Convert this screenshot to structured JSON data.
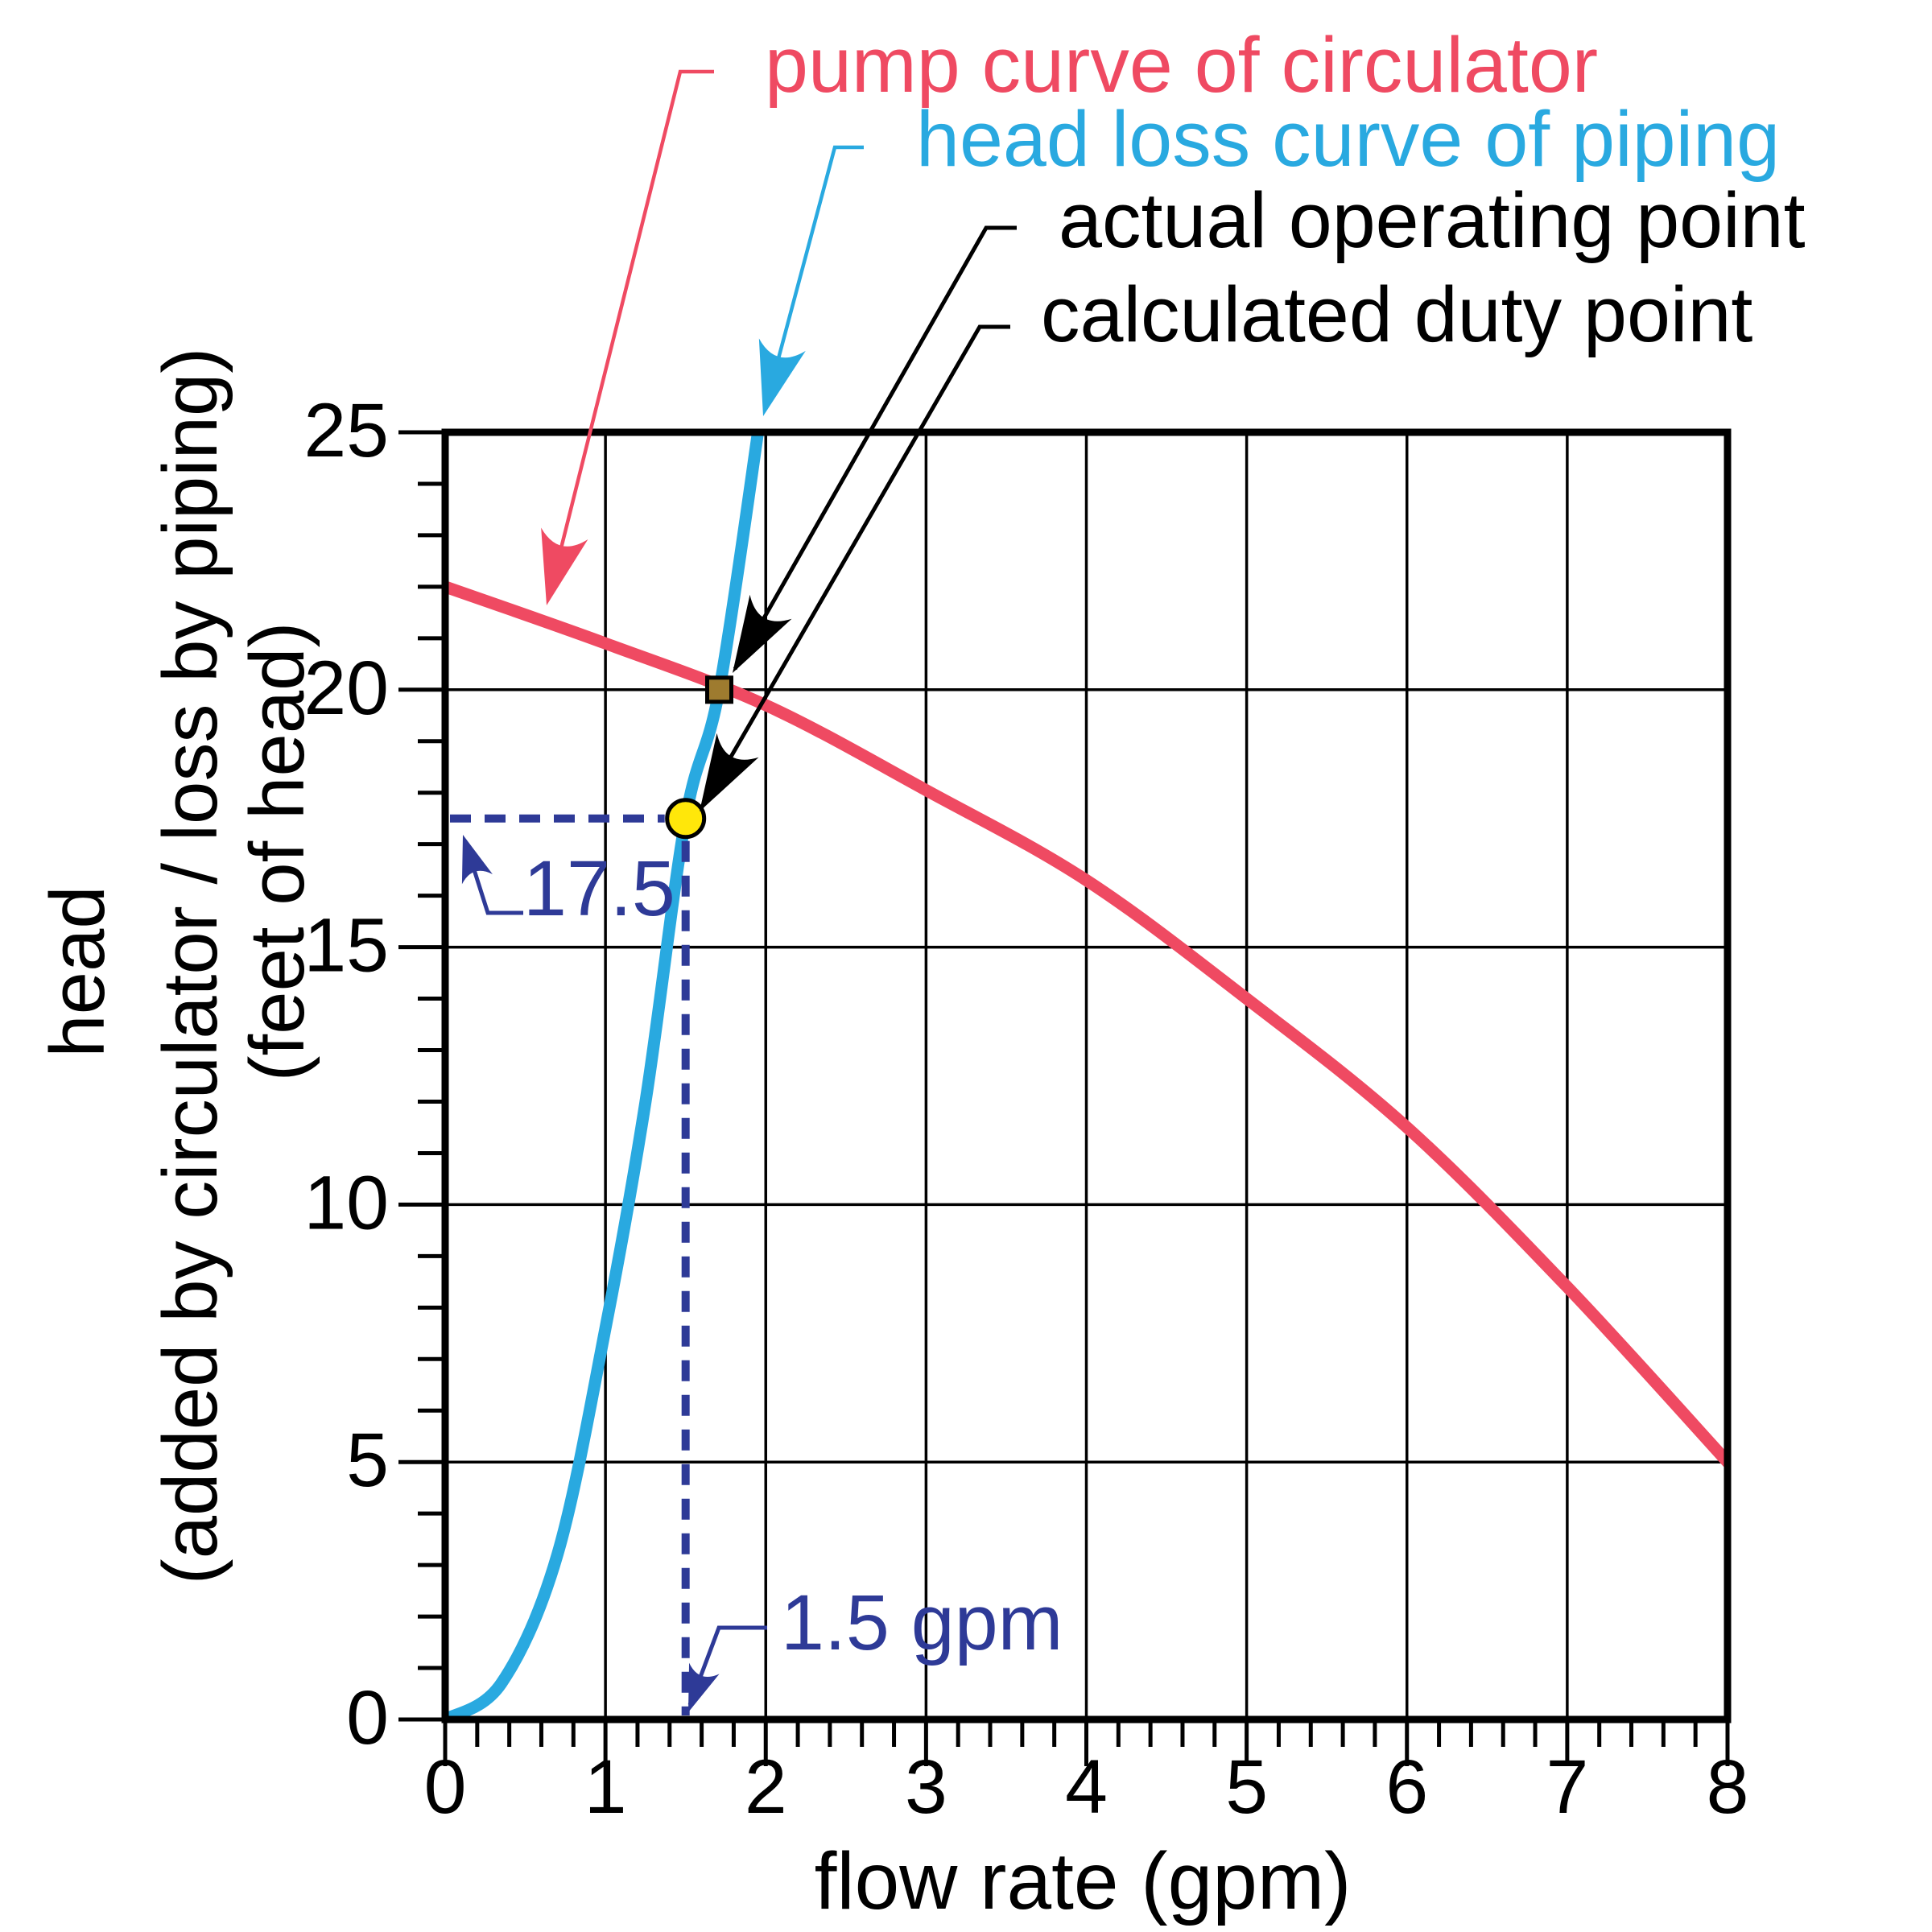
{
  "colors": {
    "red": "#EF4A62",
    "blue": "#29A9E0",
    "navy": "#2E3A97",
    "yellow": "#FFE70A",
    "brown": "#9E7B2F",
    "black": "#000000"
  },
  "labels": {
    "pump": {
      "text": "pump curve of circulator"
    },
    "headloss": {
      "text": "head loss curve of piping"
    },
    "actual": {
      "text": "actual operating point"
    },
    "duty": {
      "text": "calculated duty point"
    }
  },
  "callouts": {
    "head_value": {
      "text": "17.5",
      "value": 17.5
    },
    "flow_value": {
      "text": "1.5 gpm",
      "value": 1.5
    }
  },
  "axis": {
    "x_title": "flow rate (gpm)",
    "y_title_1": "head",
    "y_title_2": "(added by circulator / loss by piping)",
    "y_title_3": "(feet of head)"
  },
  "chart_data": {
    "type": "line",
    "xlabel": "flow rate (gpm)",
    "ylabel": "head (added by circulator / loss by piping) (feet of head)",
    "xlim": [
      0,
      8
    ],
    "ylim": [
      0,
      25
    ],
    "x_major_ticks": [
      0,
      1,
      2,
      3,
      4,
      5,
      6,
      7,
      8
    ],
    "x_minor_step": 0.2,
    "y_major_ticks": [
      0,
      5,
      10,
      15,
      20,
      25
    ],
    "y_minor_step": 1,
    "grid_x": [
      1,
      2,
      3,
      4,
      5,
      6,
      7
    ],
    "grid_y": [
      5,
      10,
      15,
      20
    ],
    "legend_position": "top",
    "series": [
      {
        "name": "pump curve of circulator",
        "color": "#EF4A62",
        "points": [
          [
            0,
            22
          ],
          [
            1,
            20.9
          ],
          [
            2,
            19.7
          ],
          [
            3,
            18.05
          ],
          [
            4,
            16.3
          ],
          [
            5,
            14.0
          ],
          [
            6,
            11.5
          ],
          [
            7,
            8.4
          ],
          [
            8,
            5.0
          ]
        ]
      },
      {
        "name": "head loss curve of piping",
        "color": "#29A9E0",
        "points": [
          [
            0,
            0
          ],
          [
            0.35,
            0.7
          ],
          [
            0.7,
            3.2
          ],
          [
            1.0,
            7.6
          ],
          [
            1.25,
            12.0
          ],
          [
            1.5,
            17.5
          ],
          [
            1.71,
            20.0
          ],
          [
            1.97,
            25.4
          ]
        ]
      }
    ],
    "markers": [
      {
        "name": "actual operating point",
        "shape": "square",
        "x": 1.71,
        "y": 20.0,
        "fill": "#9E7B2F"
      },
      {
        "name": "calculated duty point",
        "shape": "circle",
        "x": 1.5,
        "y": 17.5,
        "fill": "#FFE70A"
      }
    ],
    "reference_lines": {
      "flow_gpm": 1.5,
      "head_ft": 17.5
    }
  }
}
